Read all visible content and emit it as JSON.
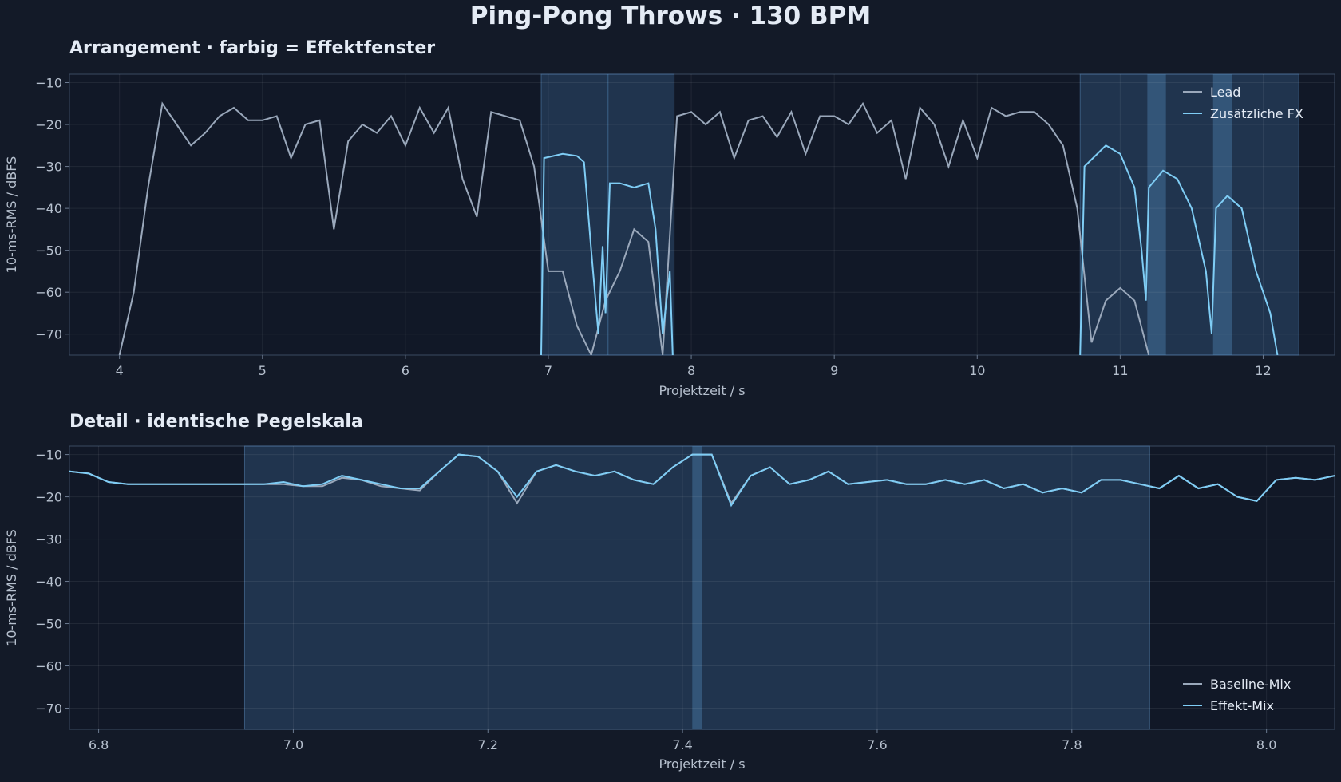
{
  "title": "Ping-Pong Throws · 130 BPM",
  "chart_data": [
    {
      "type": "line",
      "title": "Arrangement · farbig = Effektfenster",
      "xlabel": "Projektzeit / s",
      "ylabel": "10-ms-RMS / dBFS",
      "xlim": [
        3.65,
        12.5
      ],
      "ylim": [
        -75,
        -8
      ],
      "xticks": [
        4,
        5,
        6,
        7,
        8,
        9,
        10,
        11,
        12
      ],
      "yticks": [
        {
          "value": -70,
          "label": "−70"
        },
        {
          "value": -60,
          "label": "−60"
        },
        {
          "value": -50,
          "label": "−50"
        },
        {
          "value": -40,
          "label": "−40"
        },
        {
          "value": -30,
          "label": "−30"
        },
        {
          "value": -20,
          "label": "−20"
        },
        {
          "value": -10,
          "label": "−10"
        }
      ],
      "grid": true,
      "legend": "upper right",
      "windows": [
        [
          6.95,
          7.88
        ],
        [
          10.72,
          12.25
        ]
      ],
      "highlights": [
        [
          7.41,
          7.42
        ],
        [
          11.19,
          11.32
        ],
        [
          11.65,
          11.78
        ]
      ],
      "series": [
        {
          "name": "Lead",
          "color": "#9aa8bb",
          "x": [
            4.0,
            4.1,
            4.2,
            4.3,
            4.4,
            4.5,
            4.6,
            4.7,
            4.8,
            4.9,
            5.0,
            5.1,
            5.2,
            5.3,
            5.4,
            5.5,
            5.6,
            5.7,
            5.8,
            5.9,
            6.0,
            6.1,
            6.2,
            6.3,
            6.4,
            6.5,
            6.6,
            6.7,
            6.8,
            6.9,
            7.0,
            7.1,
            7.2,
            7.3,
            7.4,
            7.5,
            7.6,
            7.7,
            7.8,
            7.9,
            8.0,
            8.1,
            8.2,
            8.3,
            8.4,
            8.5,
            8.6,
            8.7,
            8.8,
            8.9,
            9.0,
            9.1,
            9.2,
            9.3,
            9.4,
            9.5,
            9.6,
            9.7,
            9.8,
            9.9,
            10.0,
            10.1,
            10.2,
            10.3,
            10.4,
            10.5,
            10.6,
            10.7,
            10.8,
            10.9,
            11.0,
            11.1,
            11.2
          ],
          "values": [
            -75,
            -60,
            -35,
            -15,
            -20,
            -25,
            -22,
            -18,
            -16,
            -19,
            -19,
            -18,
            -28,
            -20,
            -19,
            -45,
            -24,
            -20,
            -22,
            -18,
            -25,
            -16,
            -22,
            -16,
            -33,
            -42,
            -17,
            -18,
            -19,
            -30,
            -55,
            -55,
            -68,
            -75,
            -62,
            -55,
            -45,
            -48,
            -75,
            -18,
            -17,
            -20,
            -17,
            -28,
            -19,
            -18,
            -23,
            -17,
            -27,
            -18,
            -18,
            -20,
            -15,
            -22,
            -19,
            -33,
            -16,
            -20,
            -30,
            -19,
            -28,
            -16,
            -18,
            -17,
            -17,
            -20,
            -25,
            -40,
            -72,
            -62,
            -59,
            -62,
            -75
          ]
        },
        {
          "name": "Zusätzliche FX",
          "color": "#7fcdf5",
          "x": [
            6.95,
            6.97,
            7.1,
            7.2,
            7.25,
            7.3,
            7.35,
            7.38,
            7.4,
            7.43,
            7.5,
            7.6,
            7.7,
            7.75,
            7.8,
            7.85,
            7.87,
            9.0,
            10.72,
            10.75,
            10.9,
            11.0,
            11.1,
            11.15,
            11.18,
            11.2,
            11.3,
            11.4,
            11.5,
            11.6,
            11.64,
            11.67,
            11.75,
            11.85,
            11.95,
            12.05,
            12.1
          ],
          "values": [
            -75,
            -28,
            -27,
            -27.5,
            -29,
            -50,
            -70,
            -49,
            -65,
            -34,
            -34,
            -35,
            -34,
            -45,
            -70,
            -55,
            -75,
            null,
            -75,
            -30,
            -25,
            -27,
            -35,
            -50,
            -62,
            -35,
            -31,
            -33,
            -40,
            -55,
            -70,
            -40,
            -37,
            -40,
            -55,
            -65,
            -75
          ]
        }
      ]
    },
    {
      "type": "line",
      "title": "Detail · identische Pegelskala",
      "xlabel": "Projektzeit / s",
      "ylabel": "10-ms-RMS / dBFS",
      "xlim": [
        6.77,
        8.07
      ],
      "ylim": [
        -75,
        -8
      ],
      "xticks": [
        6.8,
        {
          "value": 7,
          "label": "7.0"
        },
        7.2,
        7.4,
        7.6,
        7.8,
        {
          "value": 8,
          "label": "8.0"
        }
      ],
      "yticks": [
        {
          "value": -70,
          "label": "−70"
        },
        {
          "value": -60,
          "label": "−60"
        },
        {
          "value": -50,
          "label": "−50"
        },
        {
          "value": -40,
          "label": "−40"
        },
        {
          "value": -30,
          "label": "−30"
        },
        {
          "value": -20,
          "label": "−20"
        },
        {
          "value": -10,
          "label": "−10"
        }
      ],
      "grid": true,
      "legend": "lower right",
      "windows": [
        [
          6.95,
          7.88
        ]
      ],
      "highlights": [
        [
          7.41,
          7.42
        ]
      ],
      "series": [
        {
          "name": "Baseline-Mix",
          "color": "#9aa8bb",
          "x": [
            6.77,
            6.79,
            6.81,
            6.83,
            6.85,
            6.87,
            6.89,
            6.91,
            6.93,
            6.95,
            6.97,
            6.99,
            7.01,
            7.03,
            7.05,
            7.07,
            7.09,
            7.11,
            7.13,
            7.15,
            7.17,
            7.19,
            7.21,
            7.23,
            7.25,
            7.27,
            7.29,
            7.31,
            7.33,
            7.35,
            7.37,
            7.39,
            7.41,
            7.43,
            7.45,
            7.47,
            7.49,
            7.51,
            7.53,
            7.55,
            7.57,
            7.59,
            7.61,
            7.63,
            7.65,
            7.67,
            7.69,
            7.71,
            7.73,
            7.75,
            7.77,
            7.79,
            7.81,
            7.83,
            7.85,
            7.87,
            7.89,
            7.91,
            7.93,
            7.95,
            7.97,
            7.99,
            8.01,
            8.03,
            8.05,
            8.07
          ],
          "values": [
            -14,
            -14.5,
            -16.5,
            -17,
            -17,
            -17,
            -17,
            -17,
            -17,
            -17,
            -17,
            -17,
            -17.5,
            -17.5,
            -15.5,
            -16,
            -17.5,
            -18,
            -18.5,
            -14,
            -10,
            -10.5,
            -14,
            -21.5,
            -14,
            -12.5,
            -14,
            -15,
            -14,
            -16,
            -17,
            -13,
            -10,
            -10,
            -21.5,
            -15,
            -13,
            -17,
            -16,
            -14,
            -17,
            -16.5,
            -16,
            -17,
            -17,
            -16,
            -17,
            -16,
            -18,
            -17,
            -19,
            -18,
            -19,
            -16,
            -16,
            -17,
            -18,
            -15,
            -18,
            -17,
            -20,
            -21,
            -16,
            -15.5,
            -16,
            -15
          ]
        },
        {
          "name": "Effekt-Mix",
          "color": "#7fcdf5",
          "x": [
            6.77,
            6.79,
            6.81,
            6.83,
            6.85,
            6.87,
            6.89,
            6.91,
            6.93,
            6.95,
            6.97,
            6.99,
            7.01,
            7.03,
            7.05,
            7.07,
            7.09,
            7.11,
            7.13,
            7.15,
            7.17,
            7.19,
            7.21,
            7.23,
            7.25,
            7.27,
            7.29,
            7.31,
            7.33,
            7.35,
            7.37,
            7.39,
            7.41,
            7.43,
            7.45,
            7.47,
            7.49,
            7.51,
            7.53,
            7.55,
            7.57,
            7.59,
            7.61,
            7.63,
            7.65,
            7.67,
            7.69,
            7.71,
            7.73,
            7.75,
            7.77,
            7.79,
            7.81,
            7.83,
            7.85,
            7.87,
            7.89,
            7.91,
            7.93,
            7.95,
            7.97,
            7.99,
            8.01,
            8.03,
            8.05,
            8.07
          ],
          "values": [
            -14,
            -14.5,
            -16.5,
            -17,
            -17,
            -17,
            -17,
            -17,
            -17,
            -17,
            -17,
            -16.5,
            -17.5,
            -17,
            -15,
            -16,
            -17,
            -18,
            -18,
            -14,
            -10,
            -10.5,
            -14,
            -20,
            -14,
            -12.5,
            -14,
            -15,
            -14,
            -16,
            -17,
            -13,
            -10,
            -10,
            -22,
            -15,
            -13,
            -17,
            -16,
            -14,
            -17,
            -16.5,
            -16,
            -17,
            -17,
            -16,
            -17,
            -16,
            -18,
            -17,
            -19,
            -18,
            -19,
            -16,
            -16,
            -17,
            -18,
            -15,
            -18,
            -17,
            -20,
            -21,
            -16,
            -15.5,
            -16,
            -15
          ]
        }
      ]
    }
  ]
}
